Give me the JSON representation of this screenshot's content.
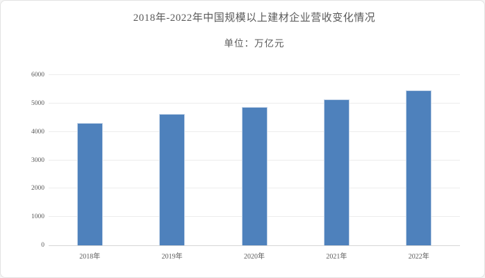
{
  "header": {
    "title": "2018年-2022年中国规模以上建材企业营收变化情况",
    "unit_label": "单位：万亿元"
  },
  "chart_data": {
    "type": "bar",
    "title": "2018年-2022年中国规模以上建材企业营收变化情况",
    "unit_label": "单位：万亿元",
    "categories": [
      "2018年",
      "2019年",
      "2020年",
      "2021年",
      "2022年"
    ],
    "series": [
      {
        "name": "规模以上建材企业营收",
        "values": [
          4300,
          4620,
          4880,
          5150,
          5470
        ]
      }
    ],
    "xlabel": "",
    "ylabel": "",
    "ylim": [
      0,
      6000
    ],
    "yticks": [
      0,
      1000,
      2000,
      3000,
      4000,
      5000,
      6000
    ],
    "grid": true,
    "legend": "none",
    "bar_color": "#4e81bc",
    "bar_border_color": "#c3d4e8",
    "gridline_color": "#ececec",
    "axis_line_color": "#d5d5d5",
    "text_color": "#595959"
  }
}
